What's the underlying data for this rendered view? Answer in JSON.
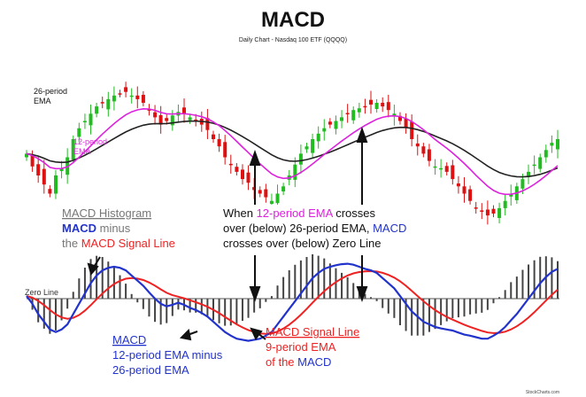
{
  "chart_data": {
    "type": "candlestick-with-macd",
    "title": "MACD",
    "subtitle": "Daily Chart - Nasdaq 100 ETF (QQQQ)",
    "colors": {
      "up": "#22bb22",
      "down": "#dd1111",
      "ema26": "#222222",
      "ema12": "#dd22dd",
      "macd": "#2233cc",
      "signal": "#ee2222",
      "histogram": "#444444",
      "annotation": "#111111",
      "gray_text": "#777777"
    },
    "price_panel": {
      "ylim": [
        0,
        100
      ],
      "ema26_name": "26-period EMA",
      "ema12_name": "12-period EMA",
      "closes": [
        52,
        45,
        40,
        35,
        30,
        40,
        44,
        50,
        60,
        66,
        70,
        74,
        78,
        80,
        82,
        84,
        85,
        86,
        84,
        82,
        80,
        76,
        72,
        68,
        70,
        73,
        75,
        74,
        72,
        70,
        68,
        65,
        60,
        56,
        50,
        46,
        42,
        38,
        36,
        32,
        30,
        28,
        26,
        30,
        34,
        40,
        46,
        52,
        56,
        60,
        63,
        66,
        68,
        70,
        72,
        74,
        76,
        77,
        78,
        79,
        80,
        78,
        76,
        74,
        70,
        66,
        60,
        56,
        52,
        48,
        45,
        44,
        42,
        38,
        34,
        30,
        26,
        22,
        20,
        18,
        19,
        22,
        26,
        30,
        34,
        38,
        42,
        46,
        50,
        54,
        58,
        60
      ]
    },
    "macd_panel": {
      "ylim": [
        -1,
        1
      ],
      "zero_line_label": "Zero Line",
      "macd": [
        0.05,
        -0.1,
        -0.3,
        -0.45,
        -0.6,
        -0.65,
        -0.6,
        -0.5,
        -0.3,
        -0.1,
        0.1,
        0.3,
        0.45,
        0.55,
        0.6,
        0.62,
        0.6,
        0.55,
        0.45,
        0.35,
        0.25,
        0.12,
        0.0,
        -0.1,
        -0.15,
        -0.12,
        -0.08,
        -0.12,
        -0.18,
        -0.22,
        -0.28,
        -0.35,
        -0.45,
        -0.55,
        -0.65,
        -0.72,
        -0.78,
        -0.8,
        -0.82,
        -0.8,
        -0.78,
        -0.72,
        -0.65,
        -0.5,
        -0.35,
        -0.2,
        -0.05,
        0.1,
        0.25,
        0.4,
        0.5,
        0.58,
        0.62,
        0.65,
        0.67,
        0.68,
        0.66,
        0.62,
        0.58,
        0.55,
        0.5,
        0.4,
        0.3,
        0.2,
        0.05,
        -0.1,
        -0.25,
        -0.35,
        -0.45,
        -0.5,
        -0.55,
        -0.58,
        -0.6,
        -0.62,
        -0.66,
        -0.7,
        -0.72,
        -0.75,
        -0.78,
        -0.78,
        -0.72,
        -0.65,
        -0.55,
        -0.42,
        -0.3,
        -0.15,
        0.0,
        0.15,
        0.3,
        0.42,
        0.52,
        0.58
      ]
    },
    "annotations": {
      "histogram_title": "MACD Histogram",
      "histogram_macd": "MACD",
      "histogram_minus": " minus",
      "histogram_the": "the ",
      "histogram_signal": "MACD Signal Line",
      "cross_line1_a": "When ",
      "cross_line1_b": "12-period EMA",
      "cross_line1_c": " crosses",
      "cross_line2_a": "over (below) 26-period EMA, ",
      "cross_line2_b": "MACD",
      "cross_line3": "crosses over (below) Zero Line",
      "macd_title": "MACD",
      "macd_desc1": "12-period EMA minus",
      "macd_desc2": "26-period EMA",
      "signal_title": "MACD Signal Line",
      "signal_desc1": "9-period EMA",
      "signal_desc2_a": "of the ",
      "signal_desc2_b": "MACD",
      "credit": "StockCharts.com"
    }
  }
}
